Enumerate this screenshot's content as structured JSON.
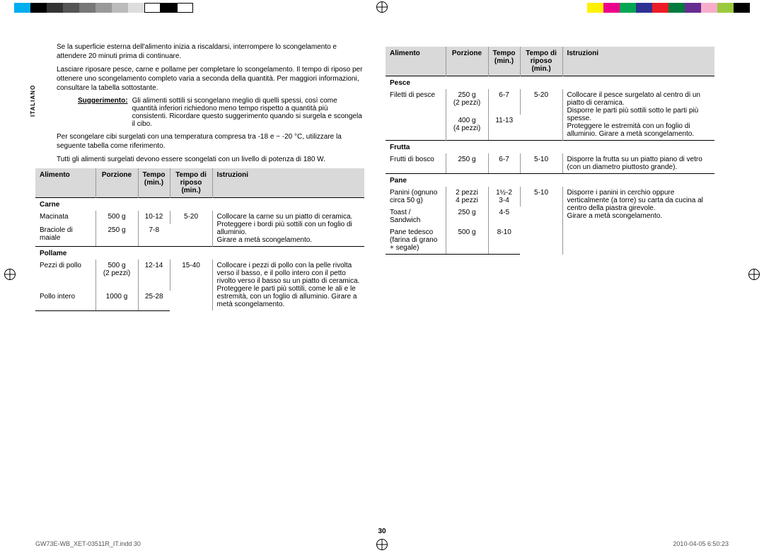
{
  "lang_tab": "ITALIANO",
  "color_swatches_left": [
    "#00aeef",
    "#000",
    "#333",
    "#555",
    "#777",
    "#999",
    "#bbb",
    "#ddd",
    "#fff",
    "#000",
    "#fff"
  ],
  "color_swatches_right": [
    "#fff100",
    "#ec008c",
    "#00a651",
    "#2e3192",
    "#ed1c24",
    "#007a3d",
    "#662d91",
    "#f7adc9",
    "#9aca3c",
    "#000"
  ],
  "intro": {
    "p1": "Se la superficie esterna dell'alimento inizia a riscaldarsi, interrompere lo scongelamento e attendere 20 minuti prima di continuare.",
    "p2": "Lasciare riposare pesce, carne e pollame per completare lo scongelamento. Il tempo di riposo per ottenere uno scongelamento completo varia a seconda della quantità. Per maggiori informazioni, consultare la tabella sottostante.",
    "tip_label": "Suggerimento:",
    "tip_text": "Gli alimenti sottili si scongelano meglio di quelli spessi, così come quantità inferiori richiedono meno tempo rispetto a quantità più consistenti. Ricordare questo suggerimento quando si surgela e scongela il cibo.",
    "p3": "Per scongelare cibi surgelati con una temperatura compresa tra -18 e ~ -20 °C, utilizzare la seguente tabella come riferimento.",
    "p4": "Tutti gli alimenti surgelati devono essere scongelati con un livello di potenza di 180 W."
  },
  "headers": {
    "c1": "Alimento",
    "c2": "Porzione",
    "c3": "Tempo (min.)",
    "c4": "Tempo di riposo (min.)",
    "c5": "Istruzioni"
  },
  "table_left": [
    {
      "cat": "Carne"
    },
    {
      "c1": "Macinata",
      "c2": "500 g",
      "c3": "10-12",
      "c4": "5-20",
      "c5": "Collocare la carne su un piatto di ceramica. Proteggere i bordi più sottili con un foglio di alluminio.\nGirare a metà scongelamento.",
      "rowspan_c4": 2,
      "rowspan_c5": 2
    },
    {
      "c1": "Braciole di maiale",
      "c2": "250 g",
      "c3": "7-8",
      "last": true
    },
    {
      "cat": "Pollame"
    },
    {
      "c1": "Pezzi di pollo",
      "c2": "500 g (2 pezzi)",
      "c3": "12-14",
      "c4": "15-40",
      "c5": "Collocare i pezzi di pollo con la pelle rivolta verso il basso, e il pollo intero con il petto rivolto verso il basso su un piatto di ceramica. Proteggere le parti più sottili, come le ali e le estremità, con un foglio di alluminio. Girare a metà scongelamento.",
      "rowspan_c4": 2,
      "rowspan_c5": 2
    },
    {
      "c1": "Pollo intero",
      "c2": "1000 g",
      "c3": "25-28",
      "last": true
    }
  ],
  "table_right": [
    {
      "cat": "Pesce"
    },
    {
      "c1": "Filetti di pesce",
      "c2": "250 g (2 pezzi)",
      "c3": "6-7",
      "c4": "5-20",
      "c5": "Collocare il pesce surgelato al centro di un piatto di ceramica.\nDisporre le parti più sottili sotto le parti più spesse.\nProteggere le estremità con un foglio di alluminio. Girare a metà scongelamento.",
      "rowspan_c1": 2,
      "rowspan_c4": 2,
      "rowspan_c5": 2
    },
    {
      "c2": "400 g (4 pezzi)",
      "c3": "11-13",
      "last": true
    },
    {
      "cat": "Frutta"
    },
    {
      "c1": "Frutti di bosco",
      "c2": "250 g",
      "c3": "6-7",
      "c4": "5-10",
      "c5": "Disporre la frutta su un piatto piano di vetro (con un diametro piuttosto grande).",
      "last": true
    },
    {
      "cat": "Pane"
    },
    {
      "c1": "Panini (ognuno circa 50 g)",
      "c2": "2 pezzi\n4 pezzi",
      "c3": "1½-2\n3-4",
      "c4": "5-10",
      "c5": "Disporre i panini in cerchio oppure verticalmente (a torre) su carta da cucina al centro della piastra girevole.\nGirare a metà scongelamento.",
      "rowspan_c4": 3,
      "rowspan_c5": 3
    },
    {
      "c1": "Toast / Sandwich",
      "c2": "250 g",
      "c3": "4-5"
    },
    {
      "c1": "Pane tedesco (farina di grano + segale)",
      "c2": "500 g",
      "c3": "8-10",
      "last": true
    }
  ],
  "page_number": "30",
  "footer_left": "GW73E-WB_XET-03511R_IT.indd   30",
  "footer_right": "2010-04-05   6:50:23"
}
